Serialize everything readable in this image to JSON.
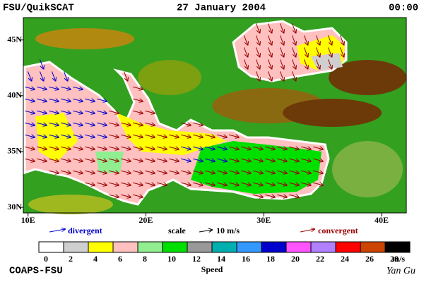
{
  "header": {
    "left": "FSU/QuikSCAT",
    "center": "27 January 2004",
    "right": "00:00"
  },
  "map": {
    "xlim": [
      9.6,
      42.1
    ],
    "ylim": [
      29.5,
      47
    ],
    "xticks": [
      {
        "value": 10,
        "label": "10E"
      },
      {
        "value": 20,
        "label": "20E"
      },
      {
        "value": 30,
        "label": "30E"
      },
      {
        "value": 40,
        "label": "40E"
      }
    ],
    "yticks": [
      {
        "value": 30,
        "label": "30N"
      },
      {
        "value": 35,
        "label": "35N"
      },
      {
        "value": 40,
        "label": "40N"
      },
      {
        "value": 45,
        "label": "45N"
      }
    ]
  },
  "legend": {
    "divergent": "divergent",
    "scale": "scale",
    "scale_value": "10 m/s",
    "convergent": "convergent"
  },
  "colorbar": {
    "ticks": [
      0,
      2,
      4,
      6,
      8,
      10,
      12,
      14,
      16,
      18,
      20,
      22,
      24,
      26,
      28
    ],
    "colors": [
      "#ffffff",
      "#cfcfcf",
      "#ffff00",
      "#ffc0c0",
      "#90ee90",
      "#00e000",
      "#999999",
      "#00b0b0",
      "#3399ff",
      "#0000cc",
      "#ff55ff",
      "#b080ff",
      "#ff0000",
      "#cc4400",
      "#000000"
    ],
    "unit": "m/s",
    "label": "Speed"
  },
  "footer": {
    "left": "COAPS-FSU",
    "right": "Yan Gu"
  }
}
